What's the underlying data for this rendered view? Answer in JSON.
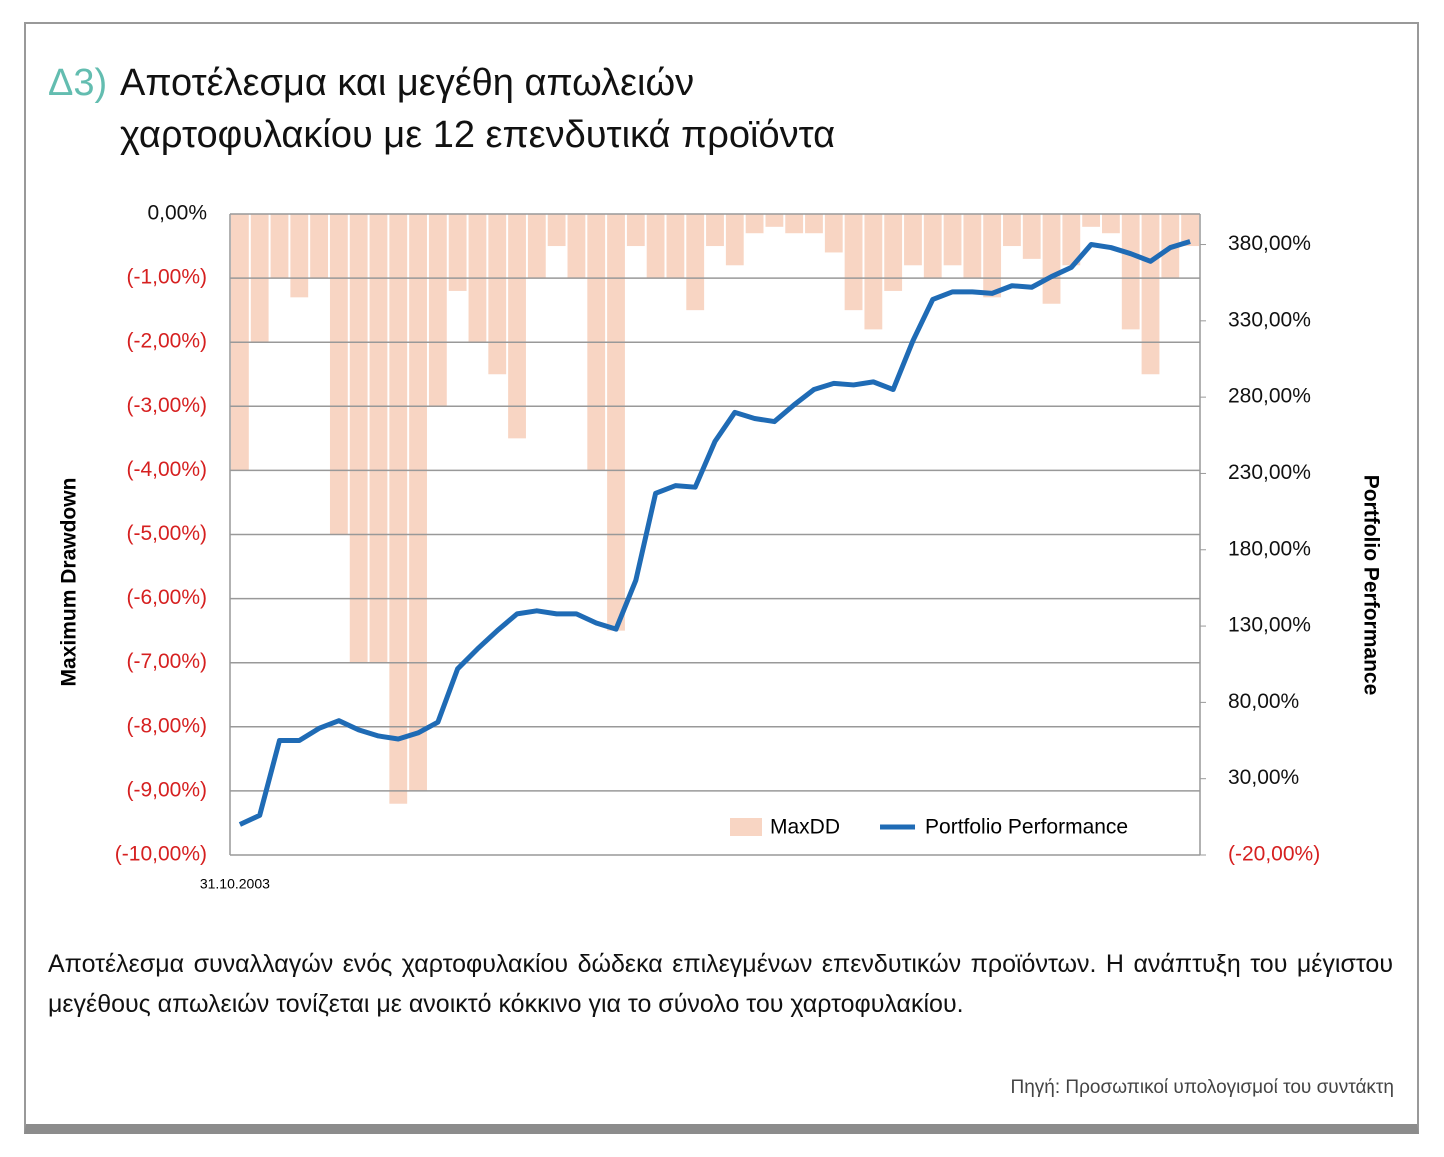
{
  "header": {
    "prefix": "Δ3)",
    "title_lines": [
      "Αποτέλεσμα και μεγέθη απωλειών",
      "χαρτοφυλακίου με 12 επενδυτικά προϊόντα"
    ]
  },
  "chart_data": {
    "type": "combo",
    "y_label": "Maximum Drawdown",
    "y2_label": "Portfolio Performance",
    "categories": [
      "31.10.2003",
      null,
      null,
      null,
      null,
      null,
      null,
      null,
      null,
      null,
      null,
      null,
      null,
      null,
      null,
      null,
      null,
      null,
      null,
      null,
      null,
      null,
      null,
      null,
      null,
      null,
      null,
      null,
      null,
      null,
      null,
      null,
      null,
      null,
      null,
      null,
      null,
      null,
      null,
      null,
      null,
      null,
      null,
      null,
      null,
      null,
      null,
      null,
      null
    ],
    "series": [
      {
        "name": "MaxDD",
        "type": "bar",
        "color": "#f8d5c3",
        "values": [
          -4,
          -2,
          -1,
          -1.3,
          -1,
          -5,
          -7,
          -7,
          -9.2,
          -9,
          -3,
          -1.2,
          -2,
          -2.5,
          -3.5,
          -1,
          -0.5,
          -1,
          -4,
          -6.5,
          -0.5,
          -1,
          -1,
          -1.5,
          -0.5,
          -0.8,
          -0.3,
          -0.2,
          -0.3,
          -0.3,
          -0.6,
          -1.5,
          -1.8,
          -1.2,
          -0.8,
          -1,
          -0.8,
          -1,
          -1.3,
          -0.5,
          -0.7,
          -1.4,
          -0.8,
          -0.2,
          -0.3,
          -1.8,
          -2.5,
          -1,
          -0.5
        ]
      },
      {
        "name": "Portfolio Performance",
        "type": "line",
        "axis": "y2",
        "color": "#1f6bb5",
        "values": [
          0,
          6,
          55,
          55,
          63,
          68,
          62,
          58,
          56,
          60,
          67,
          102,
          115,
          127,
          138,
          140,
          138,
          138,
          132,
          128,
          160,
          217,
          222,
          221,
          251,
          270,
          266,
          264,
          275,
          285,
          289,
          288,
          290,
          285,
          317,
          344,
          349,
          349,
          348,
          353,
          352,
          359,
          365,
          380,
          378,
          374,
          369,
          378,
          382
        ]
      }
    ],
    "ylim": [
      -10,
      0
    ],
    "yticks": [
      {
        "value": 0,
        "label": "0,00%"
      },
      {
        "value": -1,
        "label": "(-1,00%)"
      },
      {
        "value": -2,
        "label": "(-2,00%)"
      },
      {
        "value": -3,
        "label": "(-3,00%)"
      },
      {
        "value": -4,
        "label": "(-4,00%)"
      },
      {
        "value": -5,
        "label": "(-5,00%)"
      },
      {
        "value": -6,
        "label": "(-6,00%)"
      },
      {
        "value": -7,
        "label": "(-7,00%)"
      },
      {
        "value": -8,
        "label": "(-8,00%)"
      },
      {
        "value": -9,
        "label": "(-9,00%)"
      },
      {
        "value": -10,
        "label": "(-10,00%)"
      }
    ],
    "y2lim": [
      -20,
      400
    ],
    "y2ticks": [
      {
        "value": -20,
        "label": "(-20,00%)"
      },
      {
        "value": 30,
        "label": "30,00%"
      },
      {
        "value": 80,
        "label": "80,00%"
      },
      {
        "value": 130,
        "label": "130,00%"
      },
      {
        "value": 180,
        "label": "180,00%"
      },
      {
        "value": 230,
        "label": "230,00%"
      },
      {
        "value": 280,
        "label": "280,00%"
      },
      {
        "value": 330,
        "label": "330,00%"
      },
      {
        "value": 380,
        "label": "380,00%"
      }
    ],
    "grid": true,
    "legend": "bottom-right"
  },
  "caption": "Αποτέλεσμα συναλλαγών ενός χαρτοφυλακίου δώδεκα επιλεγμένων επενδυτικών προϊόντων. Η ανάπτυξη του μέγιστου μεγέθους απωλειών τονίζεται με ανοικτό κόκκινο για το σύνολο του χαρτοφυλακίου.",
  "source": "Πηγή: Προσωπικοί υπολογισμοί του συντάκτη"
}
